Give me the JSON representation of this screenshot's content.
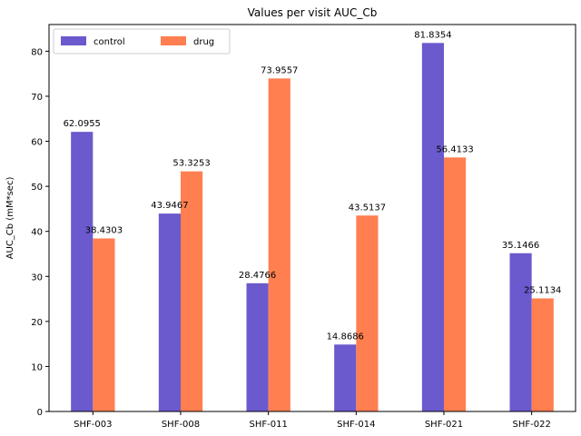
{
  "chart_data": {
    "type": "bar",
    "title": "Values per visit AUC_Cb",
    "xlabel": "",
    "ylabel": "AUC_Cb (mM*sec)",
    "categories": [
      "SHF-003",
      "SHF-008",
      "SHF-011",
      "SHF-014",
      "SHF-021",
      "SHF-022"
    ],
    "series": [
      {
        "name": "control",
        "color": "#6a5acd",
        "values": [
          62.0955,
          43.9467,
          28.4766,
          14.8686,
          81.8354,
          35.1466
        ],
        "labels": [
          "62.0955",
          "43.9467",
          "28.4766",
          "14.8686",
          "81.8354",
          "35.1466"
        ]
      },
      {
        "name": "drug",
        "color": "#ff7f50",
        "values": [
          38.4303,
          53.3253,
          73.9557,
          43.5137,
          56.4133,
          25.1134
        ],
        "labels": [
          "38.4303",
          "53.3253",
          "73.9557",
          "43.5137",
          "56.4133",
          "25.1134"
        ]
      }
    ],
    "ylim": [
      0,
      85.93
    ],
    "yticks": [
      0,
      10,
      20,
      30,
      40,
      50,
      60,
      70,
      80
    ],
    "ytick_labels": [
      "0",
      "10",
      "20",
      "30",
      "40",
      "50",
      "60",
      "70",
      "80"
    ],
    "grid": false,
    "legend_position": "top-left"
  }
}
